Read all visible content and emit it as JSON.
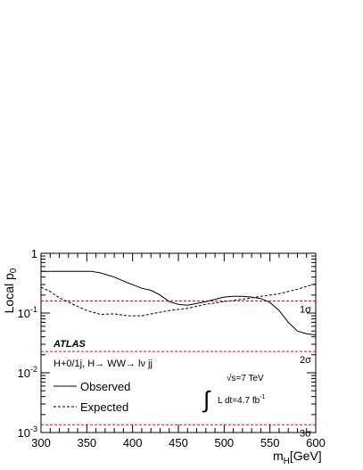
{
  "chart_data": {
    "type": "line",
    "xlabel": "m",
    "xlabel_sub": "H",
    "xlabel_unit": "[GeV]",
    "ylabel": "Local p",
    "ylabel_sub": "0",
    "xlim": [
      300,
      600
    ],
    "ylim": [
      0.001,
      1
    ],
    "yscale": "log",
    "x_ticks": [
      300,
      350,
      400,
      450,
      500,
      550,
      600
    ],
    "y_ticks": [
      {
        "value": 1,
        "base": "1",
        "exp": ""
      },
      {
        "value": 0.1,
        "base": "10",
        "exp": "-1"
      },
      {
        "value": 0.01,
        "base": "10",
        "exp": "-2"
      },
      {
        "value": 0.001,
        "base": "10",
        "exp": "-3"
      }
    ],
    "sigma_lines": [
      {
        "label": "1σ",
        "p": 0.1587
      },
      {
        "label": "2σ",
        "p": 0.02275
      },
      {
        "label": "3σ",
        "p": 0.00135
      }
    ],
    "sigma_color": "#ff0000",
    "series": [
      {
        "name": "Observed",
        "style": "solid",
        "x": [
          300,
          320,
          340,
          355,
          365,
          380,
          395,
          410,
          420,
          430,
          440,
          450,
          460,
          470,
          480,
          490,
          500,
          510,
          520,
          530,
          540,
          550,
          560,
          570,
          580,
          590,
          600
        ],
        "y": [
          0.5,
          0.5,
          0.5,
          0.5,
          0.47,
          0.4,
          0.32,
          0.26,
          0.24,
          0.2,
          0.155,
          0.14,
          0.135,
          0.145,
          0.155,
          0.17,
          0.185,
          0.19,
          0.19,
          0.185,
          0.175,
          0.15,
          0.11,
          0.07,
          0.05,
          0.045,
          0.043
        ]
      },
      {
        "name": "Expected",
        "style": "dashed",
        "x": [
          300,
          310,
          320,
          335,
          350,
          365,
          380,
          395,
          410,
          425,
          440,
          460,
          480,
          500,
          520,
          540,
          560,
          580,
          600
        ],
        "y": [
          0.27,
          0.23,
          0.18,
          0.14,
          0.11,
          0.095,
          0.097,
          0.09,
          0.09,
          0.1,
          0.11,
          0.12,
          0.14,
          0.155,
          0.17,
          0.19,
          0.21,
          0.25,
          0.31
        ]
      }
    ],
    "annotations": {
      "experiment": "ATLAS",
      "channel": "H+0/1j, H→ WW→ lν jj",
      "energy": "√s=7 TeV",
      "lumi_text": "L dt=4.7 fb",
      "lumi_exp": "-1",
      "integral": "∫"
    }
  }
}
